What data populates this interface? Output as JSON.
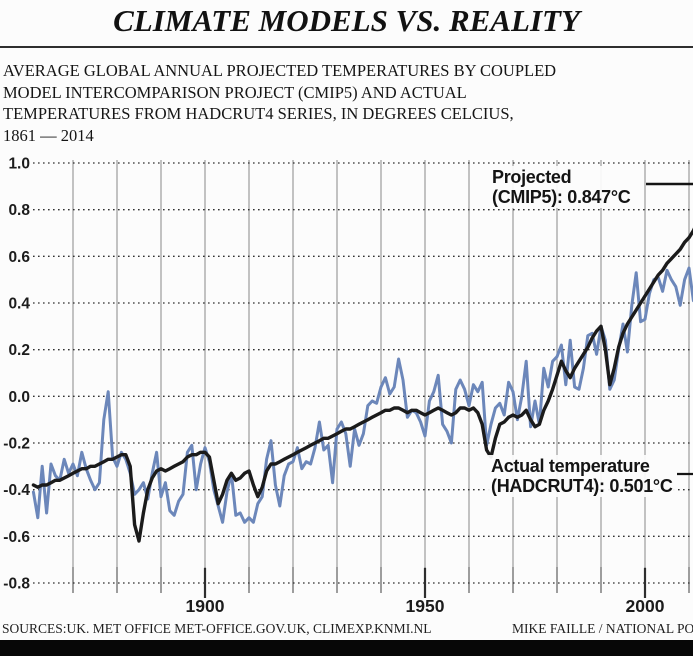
{
  "title": "CLIMATE MODELS VS. REALITY",
  "subtitle_lines": [
    "AVERAGE GLOBAL ANNUAL PROJECTED TEMPERATURES BY COUPLED",
    "MODEL INTERCOMPARISON PROJECT (CMIP5) AND ACTUAL",
    "TEMPERATURES FROM HADCRUT4 SERIES, IN DEGREES CELCIUS,",
    "1861 — 2014"
  ],
  "annotations": {
    "projected": {
      "line1": "Projected",
      "line2_prefix": "(CMIP5): ",
      "value": "0.847°C"
    },
    "actual": {
      "line1": "Actual temperature",
      "line2_prefix": "(HADCRUT4): ",
      "value": "0.501°C"
    }
  },
  "footer": {
    "sources": "SOURCES:UK. MET OFFICE MET-OFFICE.GOV.UK, CLIMEXP.KNMI.NL",
    "credit": "MIKE FAILLE / NATIONAL PO"
  },
  "chart_data": {
    "type": "line",
    "title": "CLIMATE MODELS VS. REALITY",
    "x_start": 1861,
    "x_end": 2014,
    "ylim": [
      -0.8,
      1.0
    ],
    "ytick_labels": [
      "1.0",
      "0.8",
      "0.6",
      "0.4",
      "0.2",
      "0.0",
      "-0.2",
      "-0.4",
      "-0.6",
      "-0.8"
    ],
    "xtick_step": 10,
    "xtick_labels": [
      "1900",
      "1950",
      "2000"
    ],
    "grid": {
      "horizontal": "dotted",
      "vertical": "solid"
    },
    "colors": {
      "projected": "#1b1b1b",
      "actual": "#6c87ba",
      "gridline": "#9b9b9b",
      "dotted": "#2f2f2f"
    },
    "series": [
      {
        "name": "Projected (CMIP5)",
        "end_value": 0.847,
        "color": "#1b1b1b",
        "values": [
          -0.38,
          -0.39,
          -0.38,
          -0.38,
          -0.37,
          -0.36,
          -0.36,
          -0.35,
          -0.34,
          -0.33,
          -0.32,
          -0.31,
          -0.31,
          -0.3,
          -0.3,
          -0.29,
          -0.28,
          -0.27,
          -0.27,
          -0.26,
          -0.25,
          -0.25,
          -0.3,
          -0.55,
          -0.62,
          -0.5,
          -0.4,
          -0.35,
          -0.32,
          -0.31,
          -0.32,
          -0.31,
          -0.3,
          -0.29,
          -0.28,
          -0.26,
          -0.25,
          -0.25,
          -0.24,
          -0.24,
          -0.26,
          -0.36,
          -0.46,
          -0.42,
          -0.36,
          -0.33,
          -0.36,
          -0.35,
          -0.33,
          -0.32,
          -0.38,
          -0.43,
          -0.39,
          -0.32,
          -0.29,
          -0.29,
          -0.28,
          -0.27,
          -0.26,
          -0.25,
          -0.24,
          -0.23,
          -0.22,
          -0.21,
          -0.2,
          -0.19,
          -0.18,
          -0.18,
          -0.17,
          -0.16,
          -0.15,
          -0.14,
          -0.14,
          -0.13,
          -0.12,
          -0.11,
          -0.1,
          -0.09,
          -0.08,
          -0.07,
          -0.06,
          -0.06,
          -0.05,
          -0.05,
          -0.06,
          -0.07,
          -0.06,
          -0.06,
          -0.07,
          -0.08,
          -0.07,
          -0.06,
          -0.05,
          -0.06,
          -0.07,
          -0.08,
          -0.07,
          -0.05,
          -0.05,
          -0.06,
          -0.05,
          -0.07,
          -0.12,
          -0.23,
          -0.26,
          -0.18,
          -0.12,
          -0.11,
          -0.09,
          -0.08,
          -0.09,
          -0.08,
          -0.06,
          -0.1,
          -0.13,
          -0.12,
          -0.06,
          -0.02,
          0.03,
          0.09,
          0.15,
          0.11,
          0.08,
          0.12,
          0.15,
          0.18,
          0.21,
          0.25,
          0.28,
          0.3,
          0.2,
          0.05,
          0.12,
          0.21,
          0.27,
          0.31,
          0.34,
          0.37,
          0.4,
          0.43,
          0.46,
          0.49,
          0.52,
          0.54,
          0.57,
          0.59,
          0.61,
          0.63,
          0.66,
          0.68,
          0.71,
          0.75,
          0.8,
          0.847
        ]
      },
      {
        "name": "Actual temperature (HADCRUT4)",
        "end_value": 0.501,
        "color": "#6c87ba",
        "values": [
          -0.41,
          -0.52,
          -0.3,
          -0.5,
          -0.29,
          -0.34,
          -0.36,
          -0.27,
          -0.33,
          -0.29,
          -0.34,
          -0.24,
          -0.31,
          -0.36,
          -0.4,
          -0.37,
          -0.1,
          0.02,
          -0.26,
          -0.3,
          -0.24,
          -0.27,
          -0.33,
          -0.42,
          -0.4,
          -0.37,
          -0.44,
          -0.33,
          -0.24,
          -0.43,
          -0.37,
          -0.49,
          -0.51,
          -0.45,
          -0.42,
          -0.24,
          -0.21,
          -0.4,
          -0.29,
          -0.22,
          -0.28,
          -0.4,
          -0.47,
          -0.54,
          -0.41,
          -0.33,
          -0.51,
          -0.5,
          -0.54,
          -0.52,
          -0.54,
          -0.46,
          -0.43,
          -0.27,
          -0.19,
          -0.38,
          -0.47,
          -0.34,
          -0.29,
          -0.28,
          -0.22,
          -0.31,
          -0.28,
          -0.29,
          -0.22,
          -0.11,
          -0.23,
          -0.21,
          -0.37,
          -0.14,
          -0.11,
          -0.16,
          -0.3,
          -0.14,
          -0.21,
          -0.16,
          -0.04,
          -0.02,
          -0.03,
          0.04,
          0.08,
          0.01,
          0.04,
          0.16,
          0.07,
          -0.09,
          -0.06,
          -0.07,
          -0.11,
          -0.17,
          -0.02,
          0.02,
          0.09,
          -0.12,
          -0.15,
          -0.2,
          0.03,
          0.07,
          0.03,
          -0.04,
          0.05,
          0.02,
          0.06,
          -0.21,
          -0.12,
          -0.05,
          -0.03,
          -0.08,
          0.06,
          0.02,
          -0.1,
          0.0,
          0.15,
          -0.13,
          -0.02,
          -0.12,
          0.12,
          0.04,
          0.15,
          0.17,
          0.22,
          0.05,
          0.24,
          0.04,
          0.03,
          0.12,
          0.26,
          0.27,
          0.18,
          0.3,
          0.24,
          0.03,
          0.07,
          0.2,
          0.31,
          0.19,
          0.39,
          0.53,
          0.32,
          0.33,
          0.44,
          0.5,
          0.51,
          0.45,
          0.54,
          0.5,
          0.47,
          0.39,
          0.5,
          0.55,
          0.41,
          0.46,
          0.49,
          0.501
        ]
      }
    ]
  }
}
